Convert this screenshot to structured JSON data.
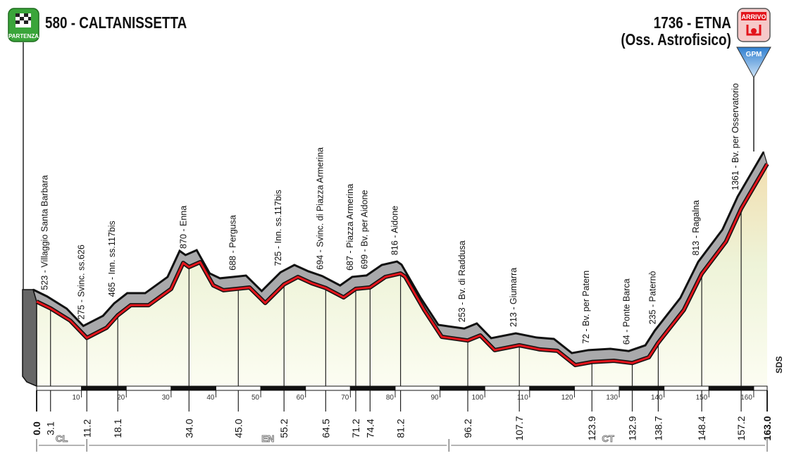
{
  "header": {
    "start_title": "580 - CALTANISSETTA",
    "start_badge": "PARTENZA",
    "finish_title_1": "1736 - ETNA",
    "finish_title_2": "(Oss. Astrofisico)",
    "finish_badge": "ARRIVO",
    "gpm_badge": "GPM",
    "sponsor_mark": "SDS"
  },
  "colors": {
    "profile_line": "#e3141b",
    "profile_side": "#a9a9ab",
    "fill_top": "#f3e6b8",
    "fill_bottom": "#fbfdf0",
    "start_green": "#3aa53a",
    "finish_red": "#e3141b",
    "gpm_blue": "#5c9ed8"
  },
  "chart_data": {
    "type": "area",
    "xlabel": "",
    "ylabel": "",
    "xlim": [
      0,
      163
    ],
    "x_ticks": [
      10,
      20,
      30,
      40,
      50,
      60,
      70,
      80,
      90,
      100,
      110,
      120,
      130,
      140,
      150,
      160
    ],
    "profile": [
      [
        0,
        580
      ],
      [
        3.1,
        523
      ],
      [
        7.5,
        420
      ],
      [
        11.2,
        275
      ],
      [
        15.6,
        360
      ],
      [
        18.1,
        465
      ],
      [
        21,
        550
      ],
      [
        25,
        550
      ],
      [
        30,
        686
      ],
      [
        32.7,
        905
      ],
      [
        34,
        870
      ],
      [
        36.5,
        911
      ],
      [
        39.4,
        716
      ],
      [
        41.7,
        675
      ],
      [
        45,
        688
      ],
      [
        47.5,
        698
      ],
      [
        51,
        568
      ],
      [
        55.2,
        725
      ],
      [
        58.3,
        787
      ],
      [
        61.4,
        734
      ],
      [
        64.5,
        694
      ],
      [
        68.5,
        615
      ],
      [
        71.2,
        687
      ],
      [
        74.4,
        699
      ],
      [
        77.8,
        787
      ],
      [
        81.2,
        816
      ],
      [
        82.2,
        790
      ],
      [
        86.5,
        509
      ],
      [
        90.4,
        284
      ],
      [
        96.2,
        253
      ],
      [
        99,
        296
      ],
      [
        102.2,
        172
      ],
      [
        107.7,
        213
      ],
      [
        112.3,
        178
      ],
      [
        116.2,
        166
      ],
      [
        120.2,
        47
      ],
      [
        123.9,
        72
      ],
      [
        128.8,
        83
      ],
      [
        132.9,
        64
      ],
      [
        136.6,
        112
      ],
      [
        138.7,
        235
      ],
      [
        144.4,
        509
      ],
      [
        148.4,
        813
      ],
      [
        153.8,
        1083
      ],
      [
        157.2,
        1361
      ],
      [
        161.6,
        1645
      ],
      [
        163,
        1736
      ]
    ],
    "waypoints": [
      {
        "km": "0.0",
        "label": ""
      },
      {
        "km": "3.1",
        "label": "523 - Villaggio Santa Barbara"
      },
      {
        "km": "11.2",
        "label": "275 - Svinc. ss.626"
      },
      {
        "km": "18.1",
        "label": "465 - Inn. ss.117bis"
      },
      {
        "km": "34.0",
        "label": "870 - Enna"
      },
      {
        "km": "45.0",
        "label": "688 - Pergusa"
      },
      {
        "km": "55.2",
        "label": "725 - Inn. ss.117bis"
      },
      {
        "km": "64.5",
        "label": "694 - Svinc. di Piazza Armerina"
      },
      {
        "km": "71.2",
        "label": "687 - Piazza Armerina"
      },
      {
        "km": "74.4",
        "label": "699 - Bv. per Aidone"
      },
      {
        "km": "81.2",
        "label": "816 - Aidone"
      },
      {
        "km": "96.2",
        "label": "253 - Bv. di Raddusa"
      },
      {
        "km": "107.7",
        "label": "213 - Giumarra"
      },
      {
        "km": "123.9",
        "label": "72 - Bv. per Patern"
      },
      {
        "km": "132.9",
        "label": "64 - Ponte Barca"
      },
      {
        "km": "138.7",
        "label": "235 - Paternò"
      },
      {
        "km": "148.4",
        "label": "813 - Ragalna"
      },
      {
        "km": "157.2",
        "label": "1361 - Bv. per Osservatorio"
      },
      {
        "km": "163.0",
        "label": ""
      }
    ],
    "provinces": [
      {
        "name": "CL",
        "from": 0,
        "to": 11.2
      },
      {
        "name": "EN",
        "from": 11.2,
        "to": 92
      },
      {
        "name": "CT",
        "from": 92,
        "to": 163
      }
    ]
  }
}
